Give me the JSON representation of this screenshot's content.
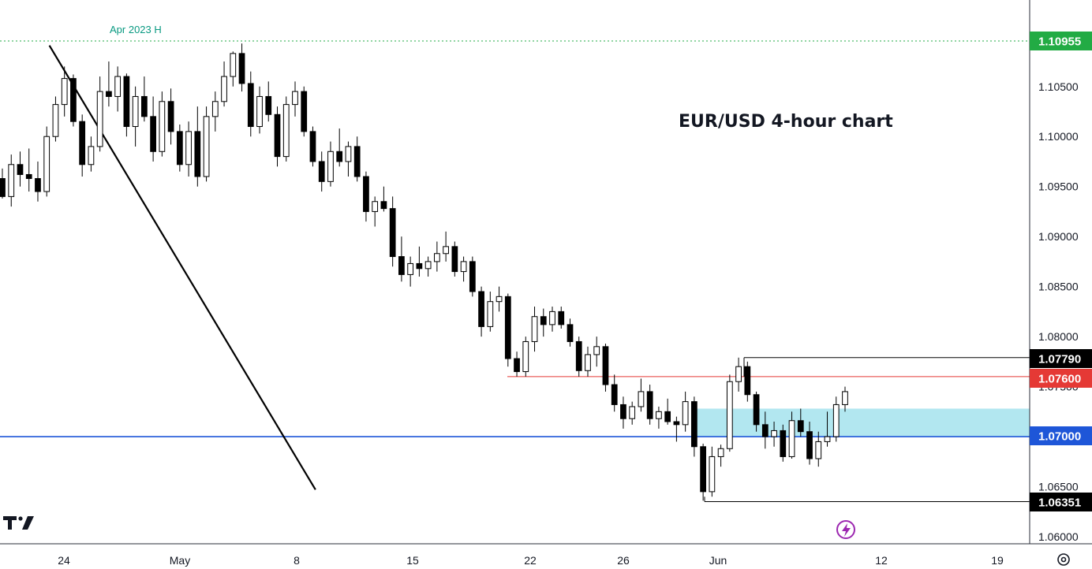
{
  "chart_data": {
    "type": "candlestick",
    "title": "EUR/USD 4-hour chart",
    "y_axis": {
      "ticks": [
        "1.10500",
        "1.10000",
        "1.09500",
        "1.09000",
        "1.08500",
        "1.08000",
        "1.07500",
        "1.06500",
        "1.06000"
      ],
      "ylim": [
        1.0595,
        1.1125
      ]
    },
    "x_axis": {
      "ticks": [
        "24",
        "May",
        "8",
        "15",
        "22",
        "26",
        "Jun",
        "12",
        "19"
      ]
    },
    "annotations": {
      "high_label": "Apr 2023 H"
    },
    "levels": [
      {
        "value": 1.10955,
        "label": "1.10955",
        "color": "#22ab44"
      },
      {
        "value": 1.0779,
        "label": "1.07790",
        "color": "#000000"
      },
      {
        "value": 1.076,
        "label": "1.07600",
        "color": "#e53935"
      },
      {
        "value": 1.07,
        "label": "1.07000",
        "color": "#1e56d8"
      },
      {
        "value": 1.06351,
        "label": "1.06351",
        "color": "#000000"
      }
    ],
    "support_zone": {
      "from": 1.07,
      "to": 1.0728,
      "color": "#b2e7f0"
    },
    "trendline": {
      "from": [
        5.3,
        1.1091
      ],
      "to": [
        35.3,
        1.0647
      ]
    },
    "candles": [
      [
        1.0958,
        1.0968,
        1.0938,
        1.094
      ],
      [
        1.094,
        1.0982,
        1.093,
        1.0972
      ],
      [
        1.0972,
        1.0985,
        1.095,
        1.0962
      ],
      [
        1.0962,
        1.0988,
        1.0945,
        1.0958
      ],
      [
        1.0958,
        1.0975,
        1.0935,
        1.0945
      ],
      [
        1.0945,
        1.101,
        1.094,
        1.1
      ],
      [
        1.1,
        1.104,
        1.0995,
        1.1032
      ],
      [
        1.1032,
        1.107,
        1.102,
        1.1058
      ],
      [
        1.1058,
        1.1062,
        1.101,
        1.1015
      ],
      [
        1.1015,
        1.1022,
        1.096,
        1.0972
      ],
      [
        1.0972,
        1.1,
        1.0965,
        1.099
      ],
      [
        1.099,
        1.106,
        1.0985,
        1.1045
      ],
      [
        1.1045,
        1.1075,
        1.103,
        1.104
      ],
      [
        1.104,
        1.107,
        1.1025,
        1.106
      ],
      [
        1.106,
        1.1063,
        1.1,
        1.101
      ],
      [
        1.101,
        1.105,
        1.099,
        1.104
      ],
      [
        1.104,
        1.106,
        1.1015,
        1.102
      ],
      [
        1.102,
        1.104,
        1.0975,
        1.0985
      ],
      [
        1.0985,
        1.1045,
        1.098,
        1.1035
      ],
      [
        1.1035,
        1.1048,
        1.0992,
        1.1005
      ],
      [
        1.1005,
        1.1012,
        1.0965,
        1.0972
      ],
      [
        1.0972,
        1.1015,
        1.096,
        1.1005
      ],
      [
        1.1005,
        1.103,
        1.095,
        1.096
      ],
      [
        1.096,
        1.103,
        1.0955,
        1.102
      ],
      [
        1.102,
        1.1045,
        1.1005,
        1.1035
      ],
      [
        1.1035,
        1.1075,
        1.103,
        1.106
      ],
      [
        1.106,
        1.1085,
        1.105,
        1.1083
      ],
      [
        1.1083,
        1.1093,
        1.1045,
        1.1053
      ],
      [
        1.1053,
        1.1065,
        1.1,
        1.101
      ],
      [
        1.101,
        1.105,
        1.1003,
        1.104
      ],
      [
        1.104,
        1.1055,
        1.1015,
        1.1022
      ],
      [
        1.1022,
        1.103,
        1.097,
        1.098
      ],
      [
        1.098,
        1.104,
        1.0975,
        1.1032
      ],
      [
        1.1032,
        1.1055,
        1.102,
        1.1045
      ],
      [
        1.1045,
        1.105,
        1.1,
        1.1005
      ],
      [
        1.1005,
        1.101,
        1.097,
        1.0975
      ],
      [
        1.0975,
        1.0985,
        1.0945,
        1.0955
      ],
      [
        1.0955,
        1.0995,
        1.095,
        1.0985
      ],
      [
        1.0985,
        1.1008,
        1.097,
        1.0975
      ],
      [
        1.0975,
        1.0995,
        1.096,
        1.099
      ],
      [
        1.099,
        1.1,
        1.0955,
        1.096
      ],
      [
        1.096,
        1.0965,
        1.0915,
        1.0925
      ],
      [
        1.0925,
        1.094,
        1.091,
        1.0935
      ],
      [
        1.0935,
        1.095,
        1.0925,
        1.0928
      ],
      [
        1.0928,
        1.094,
        1.087,
        1.088
      ],
      [
        1.088,
        1.09,
        1.0855,
        1.0862
      ],
      [
        1.0862,
        1.088,
        1.085,
        1.0873
      ],
      [
        1.0873,
        1.089,
        1.086,
        1.0868
      ],
      [
        1.0868,
        1.088,
        1.086,
        1.0875
      ],
      [
        1.0875,
        1.0895,
        1.0865,
        1.0883
      ],
      [
        1.0883,
        1.0905,
        1.0875,
        1.089
      ],
      [
        1.089,
        1.0895,
        1.086,
        1.0865
      ],
      [
        1.0865,
        1.088,
        1.0855,
        1.0875
      ],
      [
        1.0875,
        1.088,
        1.084,
        1.0845
      ],
      [
        1.0845,
        1.085,
        1.08,
        1.081
      ],
      [
        1.081,
        1.0845,
        1.0805,
        1.0835
      ],
      [
        1.0835,
        1.085,
        1.0825,
        1.084
      ],
      [
        1.084,
        1.0843,
        1.077,
        1.0778
      ],
      [
        1.0778,
        1.0785,
        1.076,
        1.0765
      ],
      [
        1.0765,
        1.08,
        1.076,
        1.0795
      ],
      [
        1.0795,
        1.083,
        1.0785,
        1.082
      ],
      [
        1.082,
        1.0828,
        1.08,
        1.0812
      ],
      [
        1.0812,
        1.083,
        1.0805,
        1.0825
      ],
      [
        1.0825,
        1.083,
        1.0808,
        1.0812
      ],
      [
        1.0812,
        1.0818,
        1.079,
        1.0795
      ],
      [
        1.0795,
        1.08,
        1.076,
        1.0766
      ],
      [
        1.0766,
        1.079,
        1.076,
        1.0782
      ],
      [
        1.0782,
        1.08,
        1.077,
        1.079
      ],
      [
        1.079,
        1.0793,
        1.0745,
        1.0752
      ],
      [
        1.0752,
        1.0762,
        1.0725,
        1.0732
      ],
      [
        1.0732,
        1.074,
        1.0708,
        1.0718
      ],
      [
        1.0718,
        1.0735,
        1.0712,
        1.073
      ],
      [
        1.073,
        1.0758,
        1.0725,
        1.0745
      ],
      [
        1.0745,
        1.0752,
        1.0712,
        1.0718
      ],
      [
        1.0718,
        1.073,
        1.0708,
        1.0725
      ],
      [
        1.0725,
        1.0738,
        1.0712,
        1.0715
      ],
      [
        1.0715,
        1.072,
        1.0695,
        1.0712
      ],
      [
        1.0712,
        1.0745,
        1.0705,
        1.0735
      ],
      [
        1.0735,
        1.074,
        1.068,
        1.069
      ],
      [
        1.069,
        1.0693,
        1.0636,
        1.0645
      ],
      [
        1.0645,
        1.069,
        1.064,
        1.068
      ],
      [
        1.068,
        1.0692,
        1.067,
        1.0688
      ],
      [
        1.0688,
        1.0762,
        1.0685,
        1.0755
      ],
      [
        1.0755,
        1.0779,
        1.0745,
        1.077
      ],
      [
        1.077,
        1.0775,
        1.0735,
        1.0742
      ],
      [
        1.0742,
        1.0745,
        1.0705,
        1.0712
      ],
      [
        1.0712,
        1.0725,
        1.0688,
        1.07
      ],
      [
        1.07,
        1.0715,
        1.069,
        1.0706
      ],
      [
        1.0706,
        1.0712,
        1.0675,
        1.068
      ],
      [
        1.068,
        1.0725,
        1.0678,
        1.0716
      ],
      [
        1.0716,
        1.0728,
        1.07,
        1.0705
      ],
      [
        1.0705,
        1.0715,
        1.0672,
        1.0678
      ],
      [
        1.0678,
        1.0705,
        1.067,
        1.0695
      ],
      [
        1.0695,
        1.0725,
        1.069,
        1.07
      ],
      [
        1.07,
        1.074,
        1.0695,
        1.0732
      ],
      [
        1.0732,
        1.075,
        1.0725,
        1.0745
      ]
    ]
  },
  "ui": {
    "logo_text": "TV",
    "gear_icon": "gear-icon",
    "flash_icon": "lightning-icon"
  }
}
